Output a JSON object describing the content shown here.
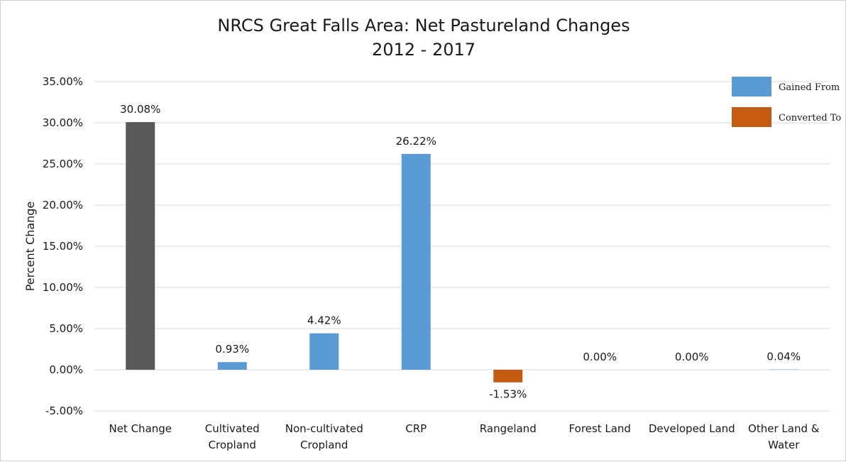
{
  "chart_data": {
    "type": "bar",
    "title": "NRCS Great Falls Area: Net Pastureland Changes",
    "subtitle": "2012 - 2017",
    "xlabel": "",
    "ylabel": "Percent Change",
    "ylim": [
      -5,
      35
    ],
    "ytick_step": 5,
    "yticks": [
      "-5.00%",
      "0.00%",
      "5.00%",
      "10.00%",
      "15.00%",
      "20.00%",
      "25.00%",
      "30.00%",
      "35.00%"
    ],
    "grid": true,
    "legend_position": "top-right",
    "categories": [
      [
        "Net Change"
      ],
      [
        "Cultivated",
        "Cropland"
      ],
      [
        "Non-cultivated",
        "Cropland"
      ],
      [
        "CRP"
      ],
      [
        "Rangeland"
      ],
      [
        "Forest Land"
      ],
      [
        "Developed Land"
      ],
      [
        "Other Land &",
        "Water"
      ]
    ],
    "values": [
      30.08,
      0.93,
      4.42,
      26.22,
      -1.53,
      0.0,
      0.0,
      0.04
    ],
    "data_labels": [
      "30.08%",
      "0.93%",
      "4.42%",
      "26.22%",
      "-1.53%",
      "0.00%",
      "0.00%",
      "0.04%"
    ],
    "bar_groups": [
      "net",
      "gained",
      "gained",
      "gained",
      "converted",
      "gained",
      "gained",
      "gained"
    ],
    "legend": [
      {
        "key": "gained",
        "label": "Gained From",
        "color": "#5b9bd5"
      },
      {
        "key": "converted",
        "label": "Converted To",
        "color": "#c55a11"
      }
    ],
    "colors": {
      "net": "#595959",
      "gained": "#5b9bd5",
      "converted": "#c55a11",
      "grid": "#d9d9d9"
    }
  }
}
